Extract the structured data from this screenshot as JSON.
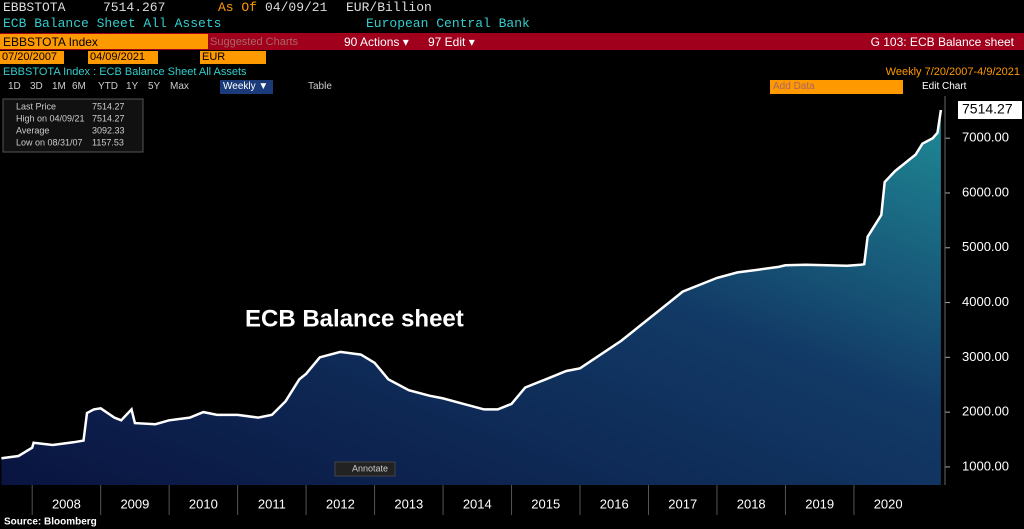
{
  "ui": {
    "ticker": "EBBSTOTA",
    "price": "7514.267",
    "as_of": "As Of",
    "date": "04/09/21",
    "unit": "EUR/Billion",
    "name": "ECB Balance Sheet All Assets",
    "issuer": "European Central Bank",
    "security": "EBBSTOTA Index",
    "suggested": "Suggested Charts",
    "actions": "90 Actions ▾",
    "edit": "97 Edit ▾",
    "page_title": "G 103: ECB Balance sheet",
    "start_date": "07/20/2007",
    "end_date": "04/09/2021",
    "currency": "EUR",
    "chart_label": "EBBSTOTA Index : ECB Balance Sheet All Assets",
    "frequency_range": "Weekly  7/20/2007-4/9/2021",
    "periods": [
      "1D",
      "3D",
      "1M",
      "6M",
      "YTD",
      "1Y",
      "5Y",
      "Max"
    ],
    "weekly": "Weekly ▼",
    "table": "Table",
    "add_data": "Add Data",
    "edit_chart": "Edit Chart",
    "legend": [
      [
        "Last Price",
        "7514.27"
      ],
      [
        "High on 04/09/21",
        "7514.27"
      ],
      [
        "Average",
        "3092.33"
      ],
      [
        "Low on 08/31/07",
        "1157.53"
      ]
    ],
    "last_tag": "7514.27",
    "annotate": "Annotate",
    "source": "Source:  Bloomberg"
  },
  "chart_data": {
    "type": "area",
    "annotation": "ECB Balance sheet",
    "x": [
      2007.55,
      2007.8,
      2008.0,
      2008.02,
      2008.3,
      2008.6,
      2008.75,
      2008.8,
      2008.9,
      2009.0,
      2009.2,
      2009.3,
      2009.45,
      2009.5,
      2009.8,
      2010.0,
      2010.3,
      2010.5,
      2010.7,
      2011.0,
      2011.3,
      2011.5,
      2011.7,
      2011.9,
      2012.0,
      2012.2,
      2012.5,
      2012.8,
      2013.0,
      2013.2,
      2013.5,
      2013.8,
      2014.0,
      2014.3,
      2014.6,
      2014.8,
      2015.0,
      2015.2,
      2015.5,
      2015.8,
      2016.0,
      2016.3,
      2016.6,
      2016.9,
      2017.0,
      2017.3,
      2017.5,
      2017.8,
      2018.0,
      2018.3,
      2018.6,
      2018.9,
      2019.0,
      2019.3,
      2019.6,
      2019.9,
      2020.1,
      2020.15,
      2020.2,
      2020.4,
      2020.45,
      2020.6,
      2020.8,
      2020.9,
      2021.0,
      2021.15,
      2021.22,
      2021.27
    ],
    "series": [
      {
        "name": "Last Price",
        "color": "#ffffff",
        "values": [
          1160,
          1200,
          1350,
          1440,
          1400,
          1450,
          1480,
          1985,
          2050,
          2070,
          1900,
          1850,
          2050,
          1800,
          1780,
          1850,
          1900,
          2000,
          1950,
          1950,
          1900,
          1950,
          2200,
          2600,
          2700,
          3000,
          3100,
          3050,
          2900,
          2600,
          2400,
          2300,
          2250,
          2150,
          2050,
          2050,
          2150,
          2450,
          2600,
          2750,
          2800,
          3050,
          3300,
          3600,
          3700,
          4000,
          4200,
          4350,
          4450,
          4550,
          4600,
          4650,
          4680,
          4690,
          4680,
          4670,
          4690,
          4700,
          5200,
          5600,
          6200,
          6400,
          6600,
          6700,
          6900,
          7000,
          7100,
          7514.27
        ]
      }
    ],
    "xlim": [
      2007.53,
      2021.33
    ],
    "xticks": [
      2008,
      2009,
      2010,
      2011,
      2012,
      2013,
      2014,
      2015,
      2016,
      2017,
      2018,
      2019,
      2020
    ],
    "ylim": [
      670,
      7770
    ],
    "yticks": [
      {
        "value": 1000,
        "label": "1000.00"
      },
      {
        "value": 2000,
        "label": "2000.00"
      },
      {
        "value": 3000,
        "label": "3000.00"
      },
      {
        "value": 4000,
        "label": "4000.00"
      },
      {
        "value": 5000,
        "label": "5000.00"
      },
      {
        "value": 6000,
        "label": "6000.00"
      },
      {
        "value": 7000,
        "label": "7000.00"
      }
    ]
  }
}
